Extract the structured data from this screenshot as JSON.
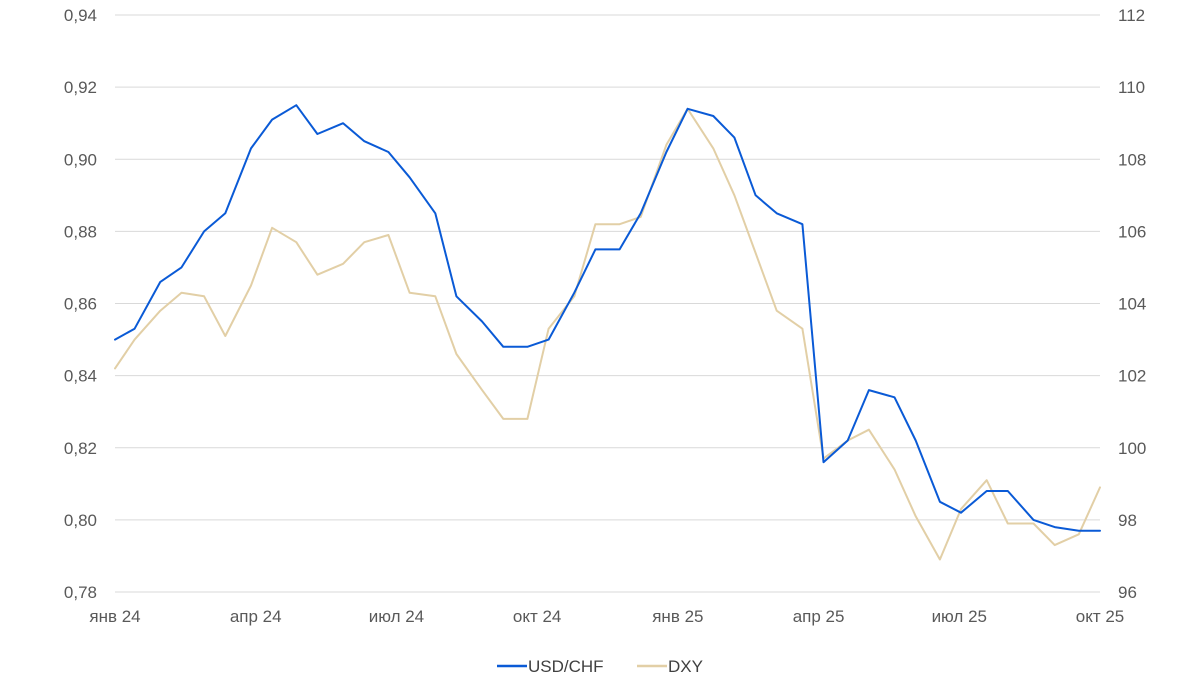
{
  "chart_data": {
    "type": "line",
    "title": "",
    "xlabel": "",
    "ylabel": "",
    "x_ticks": [
      "янв 24",
      "апр 24",
      "июл 24",
      "окт 24",
      "янв 25",
      "апр 25",
      "июл 25",
      "окт 25"
    ],
    "y_left": {
      "lim": [
        0.78,
        0.94
      ],
      "ticks": [
        "0,94",
        "0,92",
        "0,90",
        "0,88",
        "0,86",
        "0,84",
        "0,82",
        "0,80",
        "0,78"
      ]
    },
    "y_right": {
      "lim": [
        96,
        112
      ],
      "ticks": [
        "112",
        "110",
        "108",
        "106",
        "104",
        "102",
        "100",
        "98",
        "96"
      ]
    },
    "grid": "horizontal",
    "legend": "bottom-center",
    "x": [
      "2024-01-02",
      "2024-01-15",
      "2024-02-01",
      "2024-02-15",
      "2024-03-01",
      "2024-03-15",
      "2024-04-01",
      "2024-04-15",
      "2024-05-01",
      "2024-05-15",
      "2024-06-01",
      "2024-06-15",
      "2024-07-01",
      "2024-07-15",
      "2024-08-01",
      "2024-08-15",
      "2024-09-01",
      "2024-09-15",
      "2024-10-01",
      "2024-10-15",
      "2024-11-01",
      "2024-11-15",
      "2024-12-01",
      "2024-12-15",
      "2025-01-01",
      "2025-01-15",
      "2025-02-01",
      "2025-02-15",
      "2025-03-01",
      "2025-03-15",
      "2025-04-01",
      "2025-04-15",
      "2025-05-01",
      "2025-05-15",
      "2025-06-01",
      "2025-06-15",
      "2025-07-01",
      "2025-07-15",
      "2025-08-01",
      "2025-08-15",
      "2025-09-01",
      "2025-09-15",
      "2025-10-01",
      "2025-10-15"
    ],
    "series": [
      {
        "name": "USD/CHF",
        "axis": "left",
        "color": "#0a5ad6",
        "values": [
          0.85,
          0.853,
          0.866,
          0.87,
          0.88,
          0.885,
          0.903,
          0.911,
          0.915,
          0.907,
          0.91,
          0.905,
          0.902,
          0.895,
          0.885,
          0.862,
          0.855,
          0.848,
          0.848,
          0.85,
          0.863,
          0.875,
          0.875,
          0.885,
          0.902,
          0.914,
          0.912,
          0.906,
          0.89,
          0.885,
          0.882,
          0.816,
          0.822,
          0.836,
          0.834,
          0.822,
          0.805,
          0.802,
          0.808,
          0.808,
          0.8,
          0.798,
          0.797,
          0.797
        ]
      },
      {
        "name": "DXY",
        "axis": "right",
        "color": "#e2cfa6",
        "values": [
          102.2,
          103.0,
          103.8,
          104.3,
          104.2,
          103.1,
          104.5,
          106.1,
          105.7,
          104.8,
          105.1,
          105.7,
          105.9,
          104.3,
          104.2,
          102.6,
          101.6,
          100.8,
          100.8,
          103.3,
          104.2,
          106.2,
          106.2,
          106.4,
          108.4,
          109.4,
          108.3,
          107.0,
          105.4,
          103.8,
          103.3,
          99.7,
          100.2,
          100.5,
          99.4,
          98.1,
          96.9,
          98.3,
          99.1,
          97.9,
          97.9,
          97.3,
          97.6,
          98.9
        ]
      }
    ]
  }
}
